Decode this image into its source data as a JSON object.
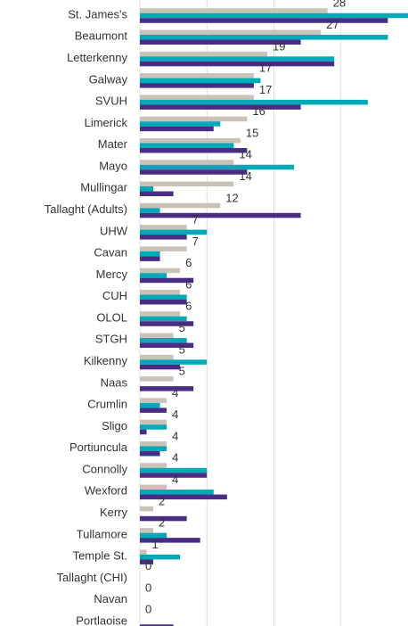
{
  "chart_data": {
    "type": "hbar",
    "categories": [
      "St. James's",
      "Beaumont",
      "Letterkenny",
      "Galway",
      "SVUH",
      "Limerick",
      "Mater",
      "Mayo",
      "Mullingar",
      "Tallaght (Adults)",
      "UHW",
      "Cavan",
      "Mercy",
      "CUH",
      "OLOL",
      "STGH",
      "Kilkenny",
      "Naas",
      "Crumlin",
      "Sligo",
      "Portiuncula",
      "Connolly",
      "Wexford",
      "Kerry",
      "Tullamore",
      "Temple St.",
      "Tallaght (CHI)",
      "Navan",
      "Portlaoise"
    ],
    "series": [
      {
        "color": "#cbc2b7",
        "show_labels": true,
        "values": [
          28,
          27,
          19,
          17,
          17,
          16,
          15,
          14,
          14,
          12,
          7,
          7,
          6,
          6,
          6,
          5,
          5,
          5,
          4,
          4,
          4,
          4,
          4,
          2,
          2,
          1,
          0,
          0,
          0
        ]
      },
      {
        "color": "#00a9b7",
        "values": [
          40,
          37,
          29,
          18,
          34,
          12,
          14,
          23,
          2,
          3,
          10,
          3,
          4,
          7,
          7,
          7,
          10,
          0,
          3,
          4,
          4,
          10,
          11,
          0,
          4,
          6,
          0,
          0,
          0
        ]
      },
      {
        "color": "#4a2c84",
        "values": [
          37,
          24,
          29,
          17,
          24,
          11,
          16,
          16,
          5,
          24,
          7,
          3,
          8,
          7,
          8,
          8,
          6,
          8,
          4,
          1,
          3,
          10,
          13,
          7,
          9,
          2,
          0,
          0,
          5
        ]
      }
    ],
    "xlim": [
      0,
      40
    ],
    "xticks": [
      0,
      10,
      20,
      30
    ],
    "grid": true
  }
}
